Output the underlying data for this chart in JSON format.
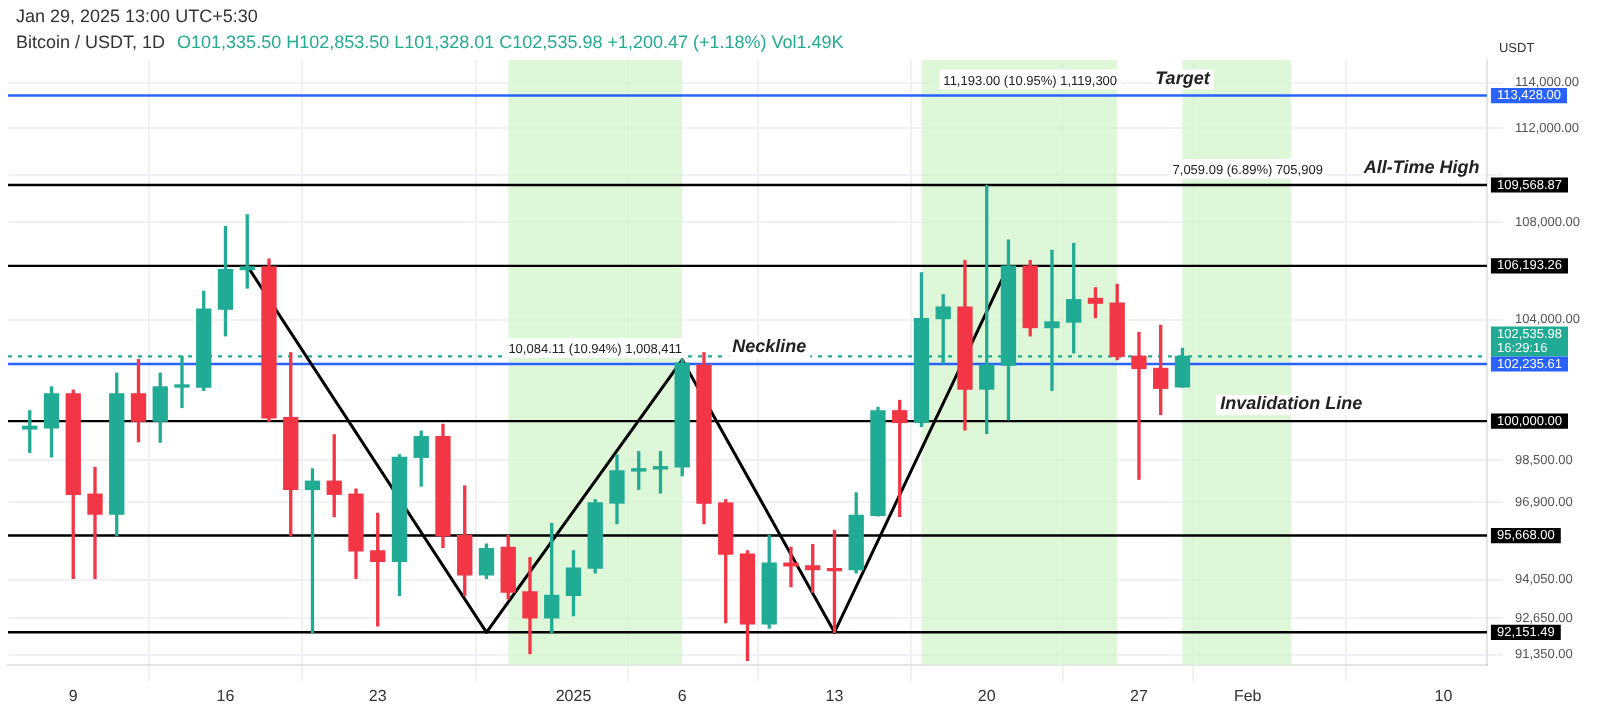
{
  "chart_data": {
    "type": "candlestick",
    "title": "Bitcoin / USDT, 1D",
    "subtitle": "O101,335.50 H102,853.50 L101,328.01 C102,535.98 +1,200.47 (+1.18%) Vol1.49K",
    "ylabel": "USDT",
    "x": [
      "2024-12-07",
      "2024-12-08",
      "2024-12-09",
      "2024-12-10",
      "2024-12-11",
      "2024-12-12",
      "2024-12-13",
      "2024-12-14",
      "2024-12-15",
      "2024-12-16",
      "2024-12-17",
      "2024-12-18",
      "2024-12-19",
      "2024-12-20",
      "2024-12-21",
      "2024-12-22",
      "2024-12-23",
      "2024-12-24",
      "2024-12-25",
      "2024-12-26",
      "2024-12-27",
      "2024-12-28",
      "2024-12-29",
      "2024-12-30",
      "2024-12-31",
      "2025-01-01",
      "2025-01-02",
      "2025-01-03",
      "2025-01-04",
      "2025-01-05",
      "2025-01-06",
      "2025-01-07",
      "2025-01-08",
      "2025-01-09",
      "2025-01-10",
      "2025-01-11",
      "2025-01-12",
      "2025-01-13",
      "2025-01-14",
      "2025-01-15",
      "2025-01-16",
      "2025-01-17",
      "2025-01-18",
      "2025-01-19",
      "2025-01-20",
      "2025-01-21",
      "2025-01-22",
      "2025-01-23",
      "2025-01-24",
      "2025-01-25",
      "2025-01-26",
      "2025-01-27",
      "2025-01-28",
      "2025-01-29"
    ],
    "ohlc": [
      [
        99700,
        100400,
        98800,
        99800
      ],
      [
        99740,
        101330,
        98630,
        101060
      ],
      [
        101060,
        101200,
        94100,
        97210
      ],
      [
        97210,
        98220,
        94100,
        96470
      ],
      [
        96470,
        101870,
        95668,
        101060
      ],
      [
        101060,
        102410,
        99210,
        100000
      ],
      [
        100000,
        101870,
        99190,
        101330
      ],
      [
        101330,
        102540,
        100530,
        101400
      ],
      [
        101330,
        105150,
        101200,
        104430
      ],
      [
        104430,
        107820,
        103360,
        106040
      ],
      [
        106040,
        108310,
        105290,
        106150
      ],
      [
        106150,
        106470,
        100000,
        100130
      ],
      [
        100130,
        102680,
        95668,
        97390
      ],
      [
        97390,
        98170,
        92130,
        97700
      ],
      [
        97700,
        99470,
        96370,
        97210
      ],
      [
        97210,
        97400,
        94100,
        95100
      ],
      [
        95100,
        96490,
        92380,
        94720
      ],
      [
        94720,
        98700,
        93480,
        98610
      ],
      [
        98610,
        99610,
        97520,
        99400
      ],
      [
        99400,
        99870,
        95230,
        95660
      ],
      [
        95660,
        97520,
        93480,
        94220
      ],
      [
        94220,
        95350,
        94100,
        95180
      ],
      [
        95230,
        95668,
        93350,
        93600
      ],
      [
        93600,
        94850,
        91400,
        92670
      ],
      [
        92670,
        96110,
        92150,
        93480
      ],
      [
        93480,
        95100,
        92750,
        94470
      ],
      [
        94470,
        97000,
        94300,
        96880
      ],
      [
        96880,
        98690,
        96110,
        98090
      ],
      [
        98090,
        98820,
        97400,
        98170
      ],
      [
        98170,
        98820,
        97260,
        98250
      ],
      [
        98250,
        102410,
        97910,
        102270
      ],
      [
        102190,
        102680,
        96110,
        96880
      ],
      [
        96880,
        97000,
        92500,
        94980
      ],
      [
        94980,
        95100,
        91160,
        92450
      ],
      [
        92450,
        95668,
        92300,
        94650
      ],
      [
        94650,
        95230,
        93800,
        94550
      ],
      [
        94550,
        95330,
        93600,
        94420
      ],
      [
        94420,
        95860,
        92150,
        94380
      ],
      [
        94420,
        97260,
        94300,
        96420
      ],
      [
        96420,
        100530,
        96400,
        100400
      ],
      [
        100400,
        100800,
        96380,
        99950
      ],
      [
        99950,
        105900,
        99800,
        104050
      ],
      [
        104050,
        105010,
        102270,
        104510
      ],
      [
        104510,
        106410,
        99660,
        101250
      ],
      [
        101250,
        109540,
        99530,
        102190
      ],
      [
        102190,
        107250,
        100050,
        106180
      ],
      [
        106180,
        106410,
        103360,
        103690
      ],
      [
        103690,
        106830,
        101200,
        103910
      ],
      [
        103910,
        107110,
        102680,
        104810
      ],
      [
        104860,
        105290,
        104090,
        104670
      ],
      [
        104670,
        105430,
        102410,
        102540
      ],
      [
        102540,
        103490,
        97780,
        102060
      ],
      [
        102060,
        103770,
        100260,
        101280
      ],
      [
        101335.5,
        102853.5,
        101328.01,
        102535.98
      ]
    ],
    "series": [
      {
        "type": "line",
        "x": [
          "2024-12-17",
          "2024-12-28",
          "2025-01-06",
          "2025-01-13",
          "2025-01-21"
        ],
        "values": [
          106193.26,
          92151.49,
          102400,
          92151.49,
          106193.26
        ],
        "color": "#000000"
      }
    ],
    "marker": "none",
    "log": true,
    "grid": true,
    "legend": false,
    "xlim": [
      "2024-12-06",
      "2025-02-12"
    ],
    "xticks": [
      {
        "value": "2024-12-09",
        "label": "9"
      },
      {
        "value": "2024-12-16",
        "label": "16"
      },
      {
        "value": "2024-12-23",
        "label": "23"
      },
      {
        "value": "2025-01-01",
        "label": "2025"
      },
      {
        "value": "2025-01-06",
        "label": "6"
      },
      {
        "value": "2025-01-13",
        "label": "13"
      },
      {
        "value": "2025-01-20",
        "label": "20"
      },
      {
        "value": "2025-01-27",
        "label": "27"
      },
      {
        "value": "2025-02-01",
        "label": "Feb"
      },
      {
        "value": "2025-02-10",
        "label": "10"
      }
    ],
    "ylim": [
      91000,
      115000
    ],
    "yticks": [
      {
        "value": 91350,
        "label": "91,350.00"
      },
      {
        "value": 92650,
        "label": "92,650.00"
      },
      {
        "value": 94050,
        "label": "94,050.00"
      },
      {
        "value": 96900,
        "label": "96,900.00"
      },
      {
        "value": 98500,
        "label": "98,500.00"
      },
      {
        "value": 104000,
        "label": "104,000.00"
      },
      {
        "value": 108000,
        "label": "108,000.00"
      },
      {
        "value": 110000,
        "label": null
      },
      {
        "value": 112000,
        "label": "112,000.00"
      },
      {
        "value": 114000,
        "label": "114,000.00"
      }
    ],
    "bands": [
      {
        "axis": "x",
        "from": "2024-12-29",
        "to": "2025-01-06",
        "color": "#d6f5cf"
      },
      {
        "axis": "x",
        "from": "2025-01-17",
        "to": "2025-01-26",
        "color": "#d6f5cf"
      },
      {
        "axis": "x",
        "from": "2025-01-29",
        "to": "2025-02-03",
        "color": "#d6f5cf"
      }
    ],
    "ref_lines": [
      {
        "axis": "y",
        "value": 113428,
        "color": "#2962ff",
        "label": "113,428.00"
      },
      {
        "axis": "y",
        "value": 109568.87,
        "color": "#000000",
        "label": "109,568.87"
      },
      {
        "axis": "y",
        "value": 106193.26,
        "color": "#000000",
        "label": "106,193.26"
      },
      {
        "axis": "y",
        "value": 102535.98,
        "color": "#22ab94",
        "line_style": "dotted",
        "label": "102,535.98"
      },
      {
        "axis": "y",
        "value": 102235.61,
        "color": "#2962ff",
        "label": "102,235.61"
      },
      {
        "axis": "y",
        "value": 100000,
        "color": "#000000",
        "label": "100,000.00"
      },
      {
        "axis": "y",
        "value": 95668,
        "color": "#000000",
        "label": "95,668.00"
      },
      {
        "axis": "y",
        "value": 92151.49,
        "color": "#000000",
        "label": "92,151.49"
      }
    ],
    "annotations": [
      "Jan 29, 2025 13:00 UTC+5:30",
      "16:29:16",
      {
        "text": "Target",
        "x": "2025-01-29",
        "y": 113428
      },
      {
        "text": "All-Time High",
        "x": "2025-02-09",
        "y": 109568.87
      },
      {
        "text": "Neckline",
        "x": "2025-01-10",
        "y": 102235.61
      },
      {
        "text": "Invalidation Line",
        "x": "2025-02-03",
        "y": 100000
      },
      {
        "text": "10,084.11 (10.94%) 1,008,411",
        "x": "2025-01-02",
        "y": 102235.61
      },
      {
        "text": "11,193.00 (10.95%) 1,119,300",
        "x": "2025-01-22",
        "y": 113428
      },
      {
        "text": "7,059.09 (6.89%) 705,909",
        "x": "2025-02-01",
        "y": 109568.87
      }
    ]
  }
}
